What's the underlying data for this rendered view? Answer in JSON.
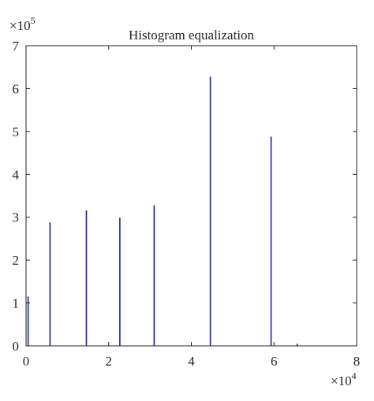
{
  "chart_data": {
    "type": "bar",
    "title": "Histogram equalization",
    "xlabel": "",
    "ylabel": "",
    "xlim": [
      0,
      80000
    ],
    "ylim": [
      0,
      700000
    ],
    "x_ticks": [
      0,
      2,
      4,
      6,
      8
    ],
    "y_ticks": [
      0,
      1,
      2,
      3,
      4,
      5,
      6,
      7
    ],
    "x_multiplier_base": "×10",
    "x_multiplier_exp": "4",
    "y_multiplier_base": "×10",
    "y_multiplier_exp": "5",
    "grid": false,
    "bar_color": "#1f1fb4",
    "x": [
      500,
      5800,
      14600,
      22700,
      31000,
      44600,
      59300,
      65600
    ],
    "values": [
      115000,
      288000,
      316000,
      299000,
      328000,
      628000,
      488000,
      5000
    ]
  }
}
